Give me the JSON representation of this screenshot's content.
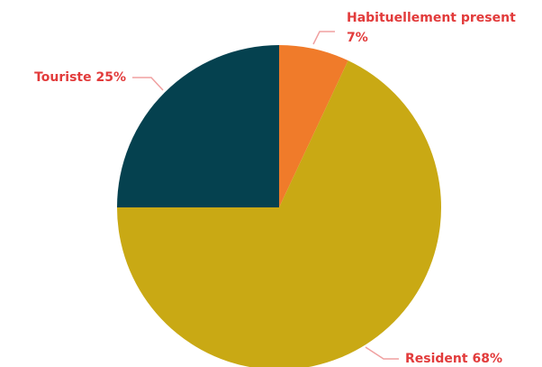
{
  "chart_data": {
    "type": "pie",
    "categories": [
      "Habituellement present",
      "Resident",
      "Touriste"
    ],
    "values": [
      7,
      68,
      25
    ],
    "value_labels": [
      "7%",
      "68%",
      "25%"
    ],
    "colors": [
      "#f07b2a",
      "#c9a914",
      "#05414f"
    ]
  }
}
